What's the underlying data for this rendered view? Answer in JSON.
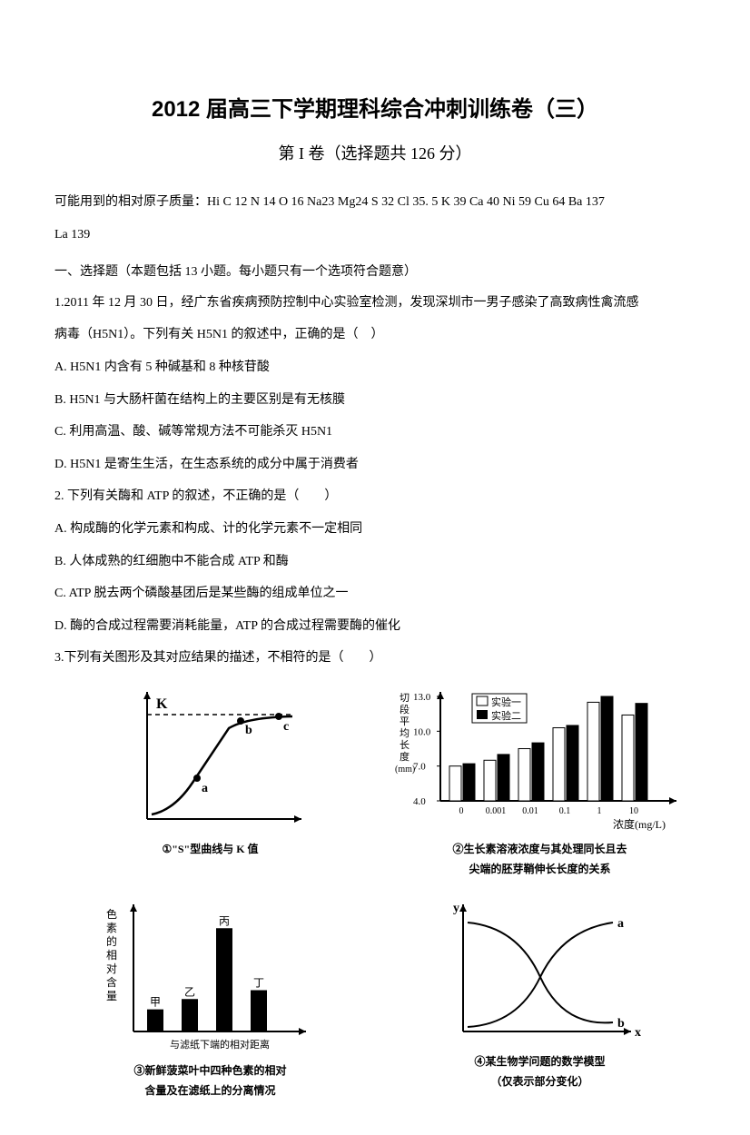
{
  "title": "2012 届高三下学期理科综合冲刺训练卷（三）",
  "subtitle": "第 I 卷（选择题共 126 分）",
  "atomic_mass": "可能用到的相对原子质量：Hi C 12 N 14 O 16 Na23 Mg24 S 32 Cl 35. 5 K 39 Ca 40 Ni 59 Cu 64 Ba 137",
  "atomic_mass_l2": "La 139",
  "section1": "一、选择题（本题包括 13 小题。每小题只有一个选项符合题意）",
  "q1": "1.2011 年 12 月 30 日，经广东省疾病预防控制中心实验室检测，发现深圳市一男子感染了高致病性禽流感",
  "q1b": "病毒（H5N1）。下列有关 H5N1 的叙述中，正确的是（　）",
  "q1A": "A. H5N1 内含有 5 种碱基和 8 种核苷酸",
  "q1B": "B. H5N1 与大肠杆菌在结构上的主要区别是有无核膜",
  "q1C": "C. 利用高温、酸、碱等常规方法不可能杀灭 H5N1",
  "q1D": "D. H5N1 是寄生生活，在生态系统的成分中属于消费者",
  "q2": "2. 下列有关酶和 ATP 的叙述，不正确的是（　　）",
  "q2A": "A. 构成酶的化学元素和构成、计的化学元素不一定相同",
  "q2B": "B. 人体成熟的红细胞中不能合成 ATP 和酶",
  "q2C": "C. ATP 脱去两个磷酸基团后是某些酶的组成单位之一",
  "q2D": "D. 酶的合成过程需要消耗能量，ATP 的合成过程需要酶的催化",
  "q3": "3.下列有关图形及其对应结果的描述，不相符的是（　　）",
  "fig1": {
    "type": "line",
    "caption": "①\"S\"型曲线与 K 值",
    "k_label": "K",
    "points": [
      "a",
      "b",
      "c"
    ],
    "curve_color": "#000000",
    "bg": "#ffffff"
  },
  "fig2": {
    "type": "grouped-bar",
    "caption_l1": "②生长素溶液浓度与其处理同长且去",
    "caption_l2": "尖端的胚芽鞘伸长长度的关系",
    "ylabel": "切段平均长度(mm)",
    "xlabel": "浓度(mg/L)",
    "categories": [
      "0",
      "0.001",
      "0.01",
      "0.1",
      "1",
      "10"
    ],
    "series": [
      {
        "name": "实验一",
        "fill": "#ffffff",
        "values": [
          7.0,
          7.5,
          8.5,
          10.3,
          12.5,
          11.4
        ]
      },
      {
        "name": "实验二",
        "fill": "#000000",
        "values": [
          7.2,
          8.0,
          9.0,
          10.5,
          13.0,
          12.4
        ]
      }
    ],
    "ylim": [
      4,
      13
    ],
    "yticks": [
      4.0,
      7.0,
      10.0,
      13.0
    ]
  },
  "fig3": {
    "type": "bar",
    "caption_l1": "③新鲜菠菜叶中四种色素的相对",
    "caption_l2": "含量及在滤纸上的分离情况",
    "ylabel": "色素的相对含量",
    "xlabel": "与滤纸下端的相对距离",
    "bars": [
      "甲",
      "乙",
      "丙",
      "丁"
    ],
    "values": [
      15,
      22,
      70,
      28
    ],
    "bar_color": "#000000"
  },
  "fig4": {
    "type": "line",
    "caption_l1": "④某生物学问题的数学模型",
    "caption_l2": "（仅表示部分变化）",
    "ylabel": "y",
    "xlabel": "x",
    "curves": [
      "a",
      "b"
    ]
  }
}
